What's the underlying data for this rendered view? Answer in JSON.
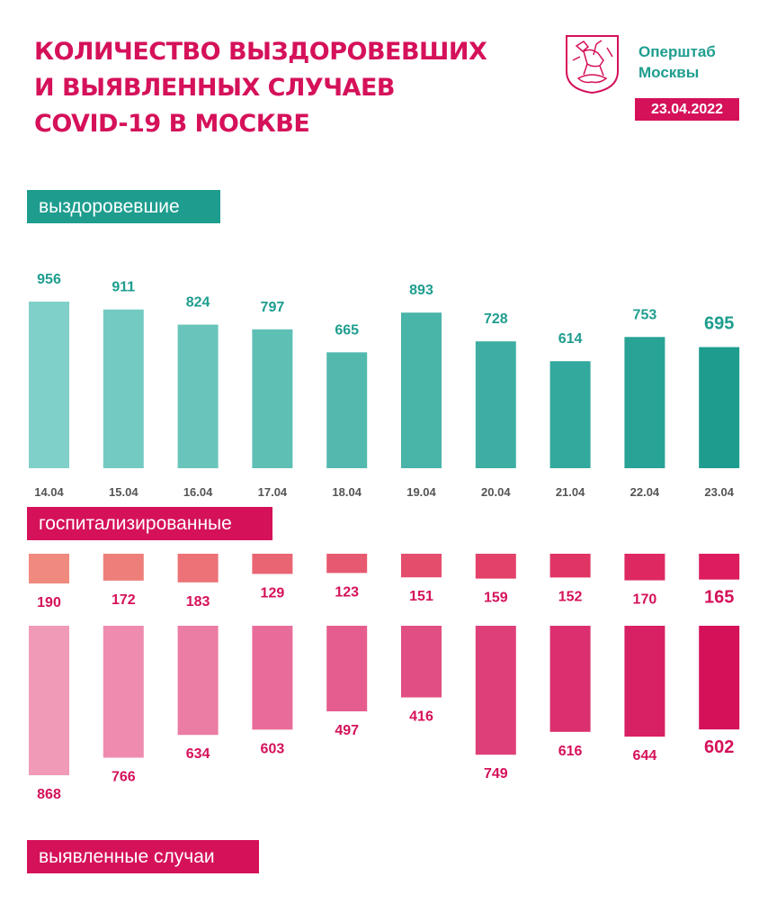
{
  "header": {
    "title_lines": [
      "Количество выздоровевших",
      "и выявленных случаев",
      "COVID-19 в Москве"
    ],
    "org_lines": [
      "Оперштаб",
      "Москвы"
    ],
    "date": "23.04.2022",
    "emblem_icon": "moscow-coat-of-arms-icon"
  },
  "chart_data": [
    {
      "type": "bar",
      "title": "выздоровевшие",
      "categories": [
        "14.04",
        "15.04",
        "16.04",
        "17.04",
        "18.04",
        "19.04",
        "20.04",
        "21.04",
        "22.04",
        "23.04"
      ],
      "values": [
        956,
        911,
        824,
        797,
        665,
        893,
        728,
        614,
        753,
        695
      ],
      "colors": [
        "#7ed0c8",
        "#1e9d8f"
      ]
    },
    {
      "type": "bar",
      "title": "госпитализированные",
      "categories": [
        "14.04",
        "15.04",
        "16.04",
        "17.04",
        "18.04",
        "19.04",
        "20.04",
        "21.04",
        "22.04",
        "23.04"
      ],
      "values": [
        190,
        172,
        183,
        129,
        123,
        151,
        159,
        152,
        170,
        165
      ],
      "colors": [
        "#f08a7e",
        "#dc1c5e"
      ]
    },
    {
      "type": "bar",
      "title": "выявленные случаи",
      "categories": [
        "14.04",
        "15.04",
        "16.04",
        "17.04",
        "18.04",
        "19.04",
        "20.04",
        "21.04",
        "22.04",
        "23.04"
      ],
      "values": [
        868,
        766,
        634,
        603,
        497,
        416,
        749,
        616,
        644,
        602
      ],
      "colors": [
        "#f19ab8",
        "#d5115a"
      ]
    }
  ]
}
